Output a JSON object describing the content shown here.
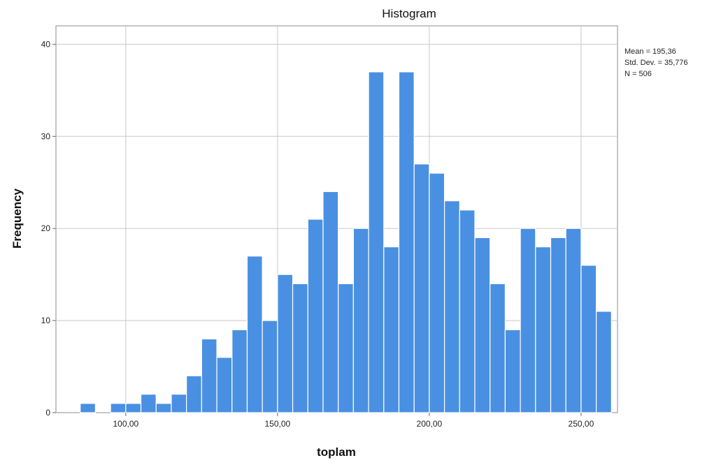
{
  "chart_data": {
    "type": "bar",
    "title": "Histogram",
    "xlabel": "toplam",
    "ylabel": "Frequency",
    "bin_start": 85,
    "bin_width": 5,
    "values": [
      1,
      0,
      1,
      1,
      2,
      1,
      2,
      4,
      8,
      6,
      9,
      17,
      10,
      15,
      14,
      21,
      24,
      14,
      20,
      37,
      18,
      37,
      27,
      26,
      23,
      22,
      19,
      14,
      9,
      20,
      18,
      19,
      20,
      16,
      11
    ],
    "xlim": [
      77,
      262
    ],
    "ylim": [
      0,
      42
    ],
    "xticks": [
      100,
      150,
      200,
      250
    ],
    "xtick_labels": [
      "100,00",
      "150,00",
      "200,00",
      "250,00"
    ],
    "yticks": [
      0,
      10,
      20,
      30,
      40
    ],
    "ytick_labels": [
      "0",
      "10",
      "20",
      "30",
      "40"
    ],
    "grid": true,
    "bar_color": "#4a90e2",
    "bar_edge_color": "#ffffff",
    "stats": {
      "mean": "Mean = 195,36",
      "std_dev": "Std. Dev. = 35,776",
      "n": "N = 506"
    }
  }
}
